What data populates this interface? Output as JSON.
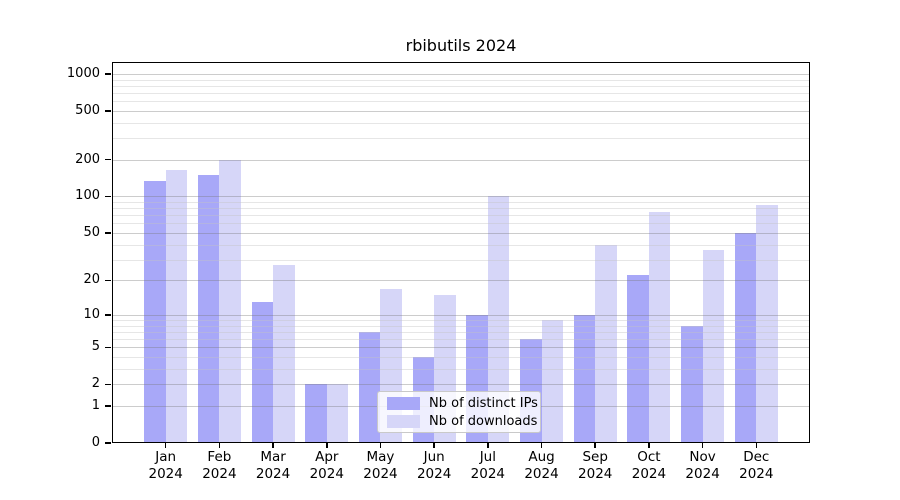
{
  "chart_data": {
    "type": "bar",
    "title": "rbibutils 2024",
    "categories": [
      "Jan",
      "Feb",
      "Mar",
      "Apr",
      "May",
      "Jun",
      "Jul",
      "Aug",
      "Sep",
      "Oct",
      "Nov",
      "Dec"
    ],
    "x_tick_second_line": "2024",
    "series": [
      {
        "name": "Nb of distinct IPs",
        "color": "#a8a8f8",
        "values": [
          133,
          150,
          13,
          2,
          7,
          4,
          10,
          6,
          10,
          22,
          8,
          50
        ]
      },
      {
        "name": "Nb of downloads",
        "color": "#d6d6f8",
        "values": [
          165,
          200,
          27,
          2,
          17,
          15,
          100,
          9,
          40,
          75,
          36,
          85
        ]
      }
    ],
    "y_scale": "log1p",
    "y_ticks": [
      0,
      1,
      2,
      5,
      10,
      20,
      50,
      100,
      200,
      500,
      1000
    ],
    "y_minor_ticks": [
      3,
      4,
      6,
      7,
      8,
      9,
      30,
      40,
      60,
      70,
      80,
      90,
      300,
      400,
      600,
      700,
      800,
      900
    ],
    "ylim": [
      0,
      1250
    ],
    "grid": true,
    "legend_position": "inside-bottom-center",
    "colors": {
      "axis": "#000000",
      "grid_major": "#d3d3d3",
      "grid_minor": "#e9e9e9",
      "background": "#ffffff"
    }
  }
}
